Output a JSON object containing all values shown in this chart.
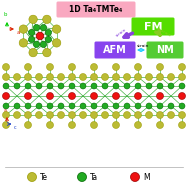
{
  "title": "1D Ta₄TMTe₄",
  "title_box_color": "#F9A8C0",
  "fm_box_color": "#55DD00",
  "fm_text": "FM",
  "afm_box_color": "#8844EE",
  "afm_text": "AFM",
  "nm_box_color": "#55CC33",
  "nm_text": "NM",
  "strain_text": "strain",
  "bg_color": "#FFFFFF",
  "te_color": "#BBBB33",
  "te_edge_color": "#999900",
  "ta_color": "#22AA22",
  "ta_edge_color": "#006600",
  "m_color": "#EE1111",
  "m_edge_color": "#990000",
  "legend_te": "Te",
  "legend_ta": "Ta",
  "legend_m": "M",
  "bond_color": "#33AA33",
  "arrow_color": "#22CCFF",
  "purple_arrow_color": "#8844DD",
  "green_arrow_color": "#88CC22",
  "axis_b_color": "#00CC00",
  "axis_a_color": "#DD2200",
  "axis_c_color": "#2244CC"
}
